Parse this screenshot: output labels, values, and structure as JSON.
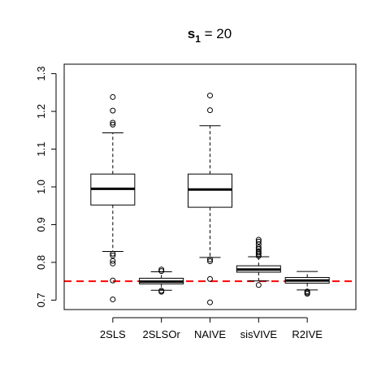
{
  "chart_data": {
    "type": "boxplot",
    "title": {
      "prefix": "s",
      "subscript": "1",
      "suffix": " = 20"
    },
    "xlabel": "",
    "ylabel": "",
    "ylim": [
      0.675,
      1.325
    ],
    "yticks": [
      "0.7",
      "0.8",
      "0.9",
      "1.0",
      "1.1",
      "1.2",
      "1.3"
    ],
    "reference_line": {
      "y": 0.75,
      "color": "#ff0000",
      "style": "dashed"
    },
    "categories": [
      "2SLS",
      "2SLSOr",
      "NAIVE",
      "sisVIVE",
      "R2IVE"
    ],
    "boxes": [
      {
        "name": "2SLS",
        "whisker_low": 0.829,
        "q1": 0.952,
        "median": 0.995,
        "q3": 1.034,
        "whisker_high": 1.143,
        "outliers": [
          0.702,
          0.752,
          0.797,
          0.804,
          0.818,
          0.823,
          1.165,
          1.17,
          1.202,
          1.238
        ]
      },
      {
        "name": "2SLSOr",
        "whisker_low": 0.726,
        "q1": 0.743,
        "median": 0.749,
        "q3": 0.758,
        "whisker_high": 0.775,
        "outliers": [
          0.722,
          0.725,
          0.777,
          0.781
        ]
      },
      {
        "name": "NAIVE",
        "whisker_low": 0.813,
        "q1": 0.946,
        "median": 0.993,
        "q3": 1.034,
        "whisker_high": 1.162,
        "outliers": [
          0.694,
          0.756,
          0.803,
          0.808,
          1.203,
          1.242
        ]
      },
      {
        "name": "sisVIVE",
        "whisker_low": 0.751,
        "q1": 0.774,
        "median": 0.781,
        "q3": 0.791,
        "whisker_high": 0.815,
        "outliers": [
          0.74,
          0.817,
          0.822,
          0.826,
          0.83,
          0.835,
          0.84,
          0.848,
          0.855,
          0.86
        ]
      },
      {
        "name": "R2IVE",
        "whisker_low": 0.727,
        "q1": 0.745,
        "median": 0.752,
        "q3": 0.76,
        "whisker_high": 0.776,
        "outliers": [
          0.717,
          0.72,
          0.723
        ]
      }
    ],
    "grid": false,
    "legend": "none"
  }
}
